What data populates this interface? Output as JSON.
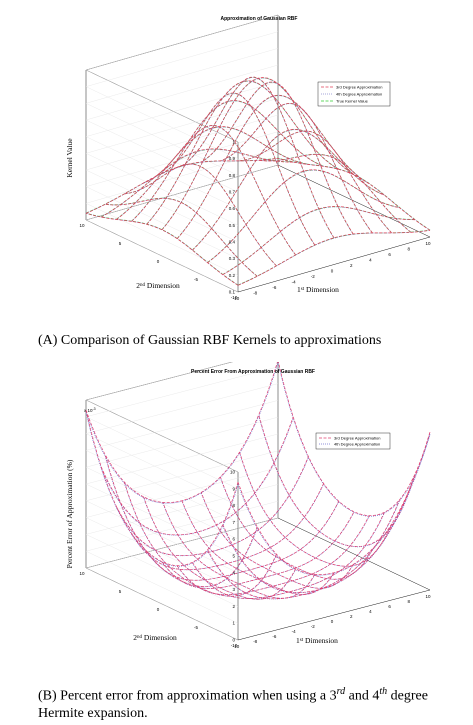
{
  "charts": [
    {
      "id": "A",
      "title": "Approximation of Gaussian RBF",
      "zlabel": "Kernel Value",
      "xlabel_pre": "1",
      "xlabel_sup": "st",
      "xlabel_post": " Dimension",
      "ylabel_pre": "2",
      "ylabel_sup": "nd",
      "ylabel_post": " Dimension",
      "z_exponent": "",
      "z_ticks": [
        "0.1",
        "0.2",
        "0.3",
        "0.4",
        "0.5",
        "0.6",
        "0.7",
        "0.8",
        "0.9",
        "1"
      ],
      "x_ticks": [
        "-10",
        "-8",
        "-6",
        "-4",
        "-2",
        "0",
        "2",
        "4",
        "6",
        "8",
        "10"
      ],
      "y_ticks": [
        "-10",
        "-5",
        "0",
        "5",
        "10"
      ],
      "legend": [
        "3rd Degree Approximation",
        "4th Degree Approximation",
        "True Kernel Value"
      ],
      "caption": "(A) Comparison of Gaussian RBF Kernels to approximations"
    },
    {
      "id": "B",
      "title": "Percent Error From Approximation of Gaussian RBF",
      "zlabel": "Percent Error of Approximation (%)",
      "xlabel_pre": "1",
      "xlabel_sup": "st",
      "xlabel_post": " Dimension",
      "ylabel_pre": "2",
      "ylabel_sup": "nd",
      "ylabel_post": " Dimension",
      "z_exponent": "x 10",
      "z_exponent_sup": "-3",
      "z_ticks": [
        "0",
        "1",
        "2",
        "3",
        "4",
        "5",
        "6",
        "7",
        "8",
        "9",
        "10"
      ],
      "x_ticks": [
        "-10",
        "-8",
        "-6",
        "-4",
        "-2",
        "0",
        "2",
        "4",
        "6",
        "8",
        "10"
      ],
      "y_ticks": [
        "-10",
        "-5",
        "0",
        "5",
        "10"
      ],
      "legend": [
        "3rd Degree Approximation",
        "4th Degree Approximation"
      ],
      "caption_pre": "(B) Percent error from approximation when using a 3",
      "caption_sup1": "rd",
      "caption_mid": " and 4",
      "caption_sup2": "th",
      "caption_post": " degree Hermite expansion."
    }
  ],
  "chart_data": [
    {
      "type": "surface",
      "title": "Approximation of Gaussian RBF",
      "xlabel": "1st Dimension",
      "ylabel": "2nd Dimension",
      "zlabel": "Kernel Value",
      "xlim": [
        -10,
        10
      ],
      "ylim": [
        -10,
        10
      ],
      "zlim": [
        0.1,
        1
      ],
      "series": [
        {
          "name": "3rd Degree Approximation",
          "color": "#e0405a",
          "dash": "dashed"
        },
        {
          "name": "4th Degree Approximation",
          "color": "#8a8ad0",
          "dash": "dotted"
        },
        {
          "name": "True Kernel Value",
          "color": "#33cc33",
          "dash": "dashed"
        }
      ],
      "grid": {
        "x": [
          -10,
          -8,
          -6,
          -4,
          -2,
          0,
          2,
          4,
          6,
          8,
          10
        ],
        "y": [
          -10,
          -8,
          -6,
          -4,
          -2,
          0,
          2,
          4,
          6,
          8,
          10
        ]
      },
      "z_min": 0.12,
      "z_max": 1.0,
      "legend_position": "top-right",
      "grid_on": true
    },
    {
      "type": "surface",
      "title": "Percent Error From Approximation of Gaussian RBF",
      "xlabel": "1st Dimension",
      "ylabel": "2nd Dimension",
      "zlabel": "Percent Error of Approximation (%)",
      "xlim": [
        -10,
        10
      ],
      "ylim": [
        -10,
        10
      ],
      "zlim": [
        0,
        0.01
      ],
      "series": [
        {
          "name": "3rd Degree Approximation",
          "color": "#e04070",
          "dash": "dashed"
        },
        {
          "name": "4th Degree Approximation",
          "color": "#7070d0",
          "dash": "dotted"
        }
      ],
      "grid": {
        "x": [
          -10,
          -8,
          -6,
          -4,
          -2,
          0,
          2,
          4,
          6,
          8,
          10
        ],
        "y": [
          -10,
          -8,
          -6,
          -4,
          -2,
          0,
          2,
          4,
          6,
          8,
          10
        ]
      },
      "z_min": 0.0,
      "z_max": 0.0094,
      "legend_position": "top-right",
      "grid_on": true
    }
  ]
}
